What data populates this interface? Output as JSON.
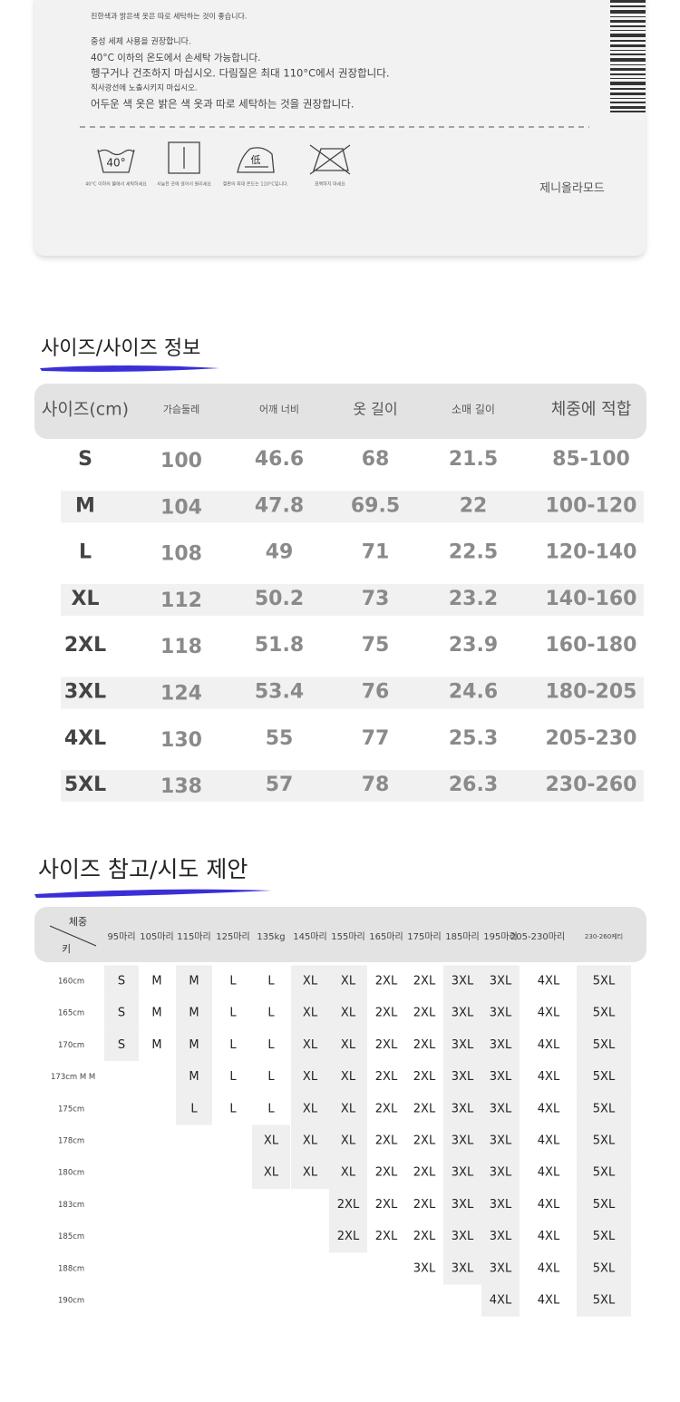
{
  "care_label": {
    "lines": [
      "진한색과 밝은색 옷은 따로 세탁하는 것이 좋습니다.",
      "중성 세제 사용을 권장합니다.",
      "40°C 이하의 온도에서 손세탁 가능합니다.",
      "헹구거나 건조하지 마십시오. 다림질은 최대 110°C에서 권장합니다.",
      "직사광선에 노출시키지 마십시오.",
      "어두운 색 옷은 밝은 색 옷과 따로 세탁하는 것을 권장합니다."
    ],
    "icons": [
      {
        "symbol": "40°",
        "caption": "40°C 이하의 물에서 세탁하세요"
      },
      {
        "caption": "서늘한 곳에 걸어서 말리세요"
      },
      {
        "symbol": "低",
        "caption": "철판의 최대 온도는 110°C입니다."
      },
      {
        "caption": "표백하지 마세요"
      }
    ],
    "brand": "제니올라모드"
  },
  "size_info": {
    "title": "사이즈/사이즈 정보",
    "header": [
      "사이즈(cm)",
      "가슴둘레",
      "어깨 너비",
      "옷 길이",
      "소매 길이",
      "체중에 적합"
    ],
    "rows": [
      [
        "S",
        100,
        46.6,
        68,
        21.5,
        "85-100"
      ],
      [
        "M",
        104,
        47.8,
        69.5,
        22,
        "100-120"
      ],
      [
        "L",
        108,
        49,
        71,
        22.5,
        "120-140"
      ],
      [
        "XL",
        112,
        50.2,
        73,
        23.2,
        "140-160"
      ],
      [
        "2XL",
        118,
        51.8,
        75,
        23.9,
        "160-180"
      ],
      [
        "3XL",
        124,
        53.4,
        76,
        24.6,
        "180-205"
      ],
      [
        "4XL",
        130,
        55,
        77,
        25.3,
        "205-230"
      ],
      [
        "5XL",
        138,
        57,
        78,
        26.3,
        "230-260"
      ]
    ]
  },
  "size_guide": {
    "title": "사이즈 참고/시도 제안",
    "weight_label": "체중",
    "height_label": "키",
    "weights": [
      "95마리",
      "105마리",
      "115마리",
      "125마리",
      "135kg",
      "145마리",
      "155마리",
      "165마리",
      "175마리",
      "185마리",
      "195마리",
      "205-230마리",
      "230-260케티"
    ],
    "rows": [
      {
        "height": "160cm",
        "sizes": [
          "S",
          "M",
          "M",
          "L",
          "L",
          "XL",
          "XL",
          "2XL",
          "2XL",
          "3XL",
          "3XL",
          "4XL",
          "5XL"
        ]
      },
      {
        "height": "165cm",
        "sizes": [
          "S",
          "M",
          "M",
          "L",
          "L",
          "XL",
          "XL",
          "2XL",
          "2XL",
          "3XL",
          "3XL",
          "4XL",
          "5XL"
        ]
      },
      {
        "height": "170cm",
        "sizes": [
          "S",
          "M",
          "M",
          "L",
          "L",
          "XL",
          "XL",
          "2XL",
          "2XL",
          "3XL",
          "3XL",
          "4XL",
          "5XL"
        ]
      },
      {
        "height": "173cm M M",
        "sizes": [
          null,
          null,
          "M",
          "L",
          "L",
          "XL",
          "XL",
          "2XL",
          "2XL",
          "3XL",
          "3XL",
          "4XL",
          "5XL"
        ]
      },
      {
        "height": "175cm",
        "sizes": [
          null,
          null,
          "L",
          "L",
          "L",
          "XL",
          "XL",
          "2XL",
          "2XL",
          "3XL",
          "3XL",
          "4XL",
          "5XL"
        ]
      },
      {
        "height": "178cm",
        "sizes": [
          null,
          null,
          null,
          null,
          "XL",
          "XL",
          "XL",
          "2XL",
          "2XL",
          "3XL",
          "3XL",
          "4XL",
          "5XL"
        ]
      },
      {
        "height": "180cm",
        "sizes": [
          null,
          null,
          null,
          null,
          "XL",
          "XL",
          "XL",
          "2XL",
          "2XL",
          "3XL",
          "3XL",
          "4XL",
          "5XL"
        ]
      },
      {
        "height": "183cm",
        "sizes": [
          null,
          null,
          null,
          null,
          null,
          null,
          "2XL",
          "2XL",
          "2XL",
          "3XL",
          "3XL",
          "4XL",
          "5XL"
        ]
      },
      {
        "height": "185cm",
        "sizes": [
          null,
          null,
          null,
          null,
          null,
          null,
          "2XL",
          "2XL",
          "2XL",
          "3XL",
          "3XL",
          "4XL",
          "5XL"
        ]
      },
      {
        "height": "188cm",
        "sizes": [
          null,
          null,
          null,
          null,
          null,
          null,
          null,
          null,
          "3XL",
          "3XL",
          "3XL",
          "4XL",
          "5XL"
        ]
      },
      {
        "height": "190cm",
        "sizes": [
          null,
          null,
          null,
          null,
          null,
          null,
          null,
          null,
          null,
          null,
          "4XL",
          "4XL",
          "5XL"
        ]
      }
    ]
  }
}
